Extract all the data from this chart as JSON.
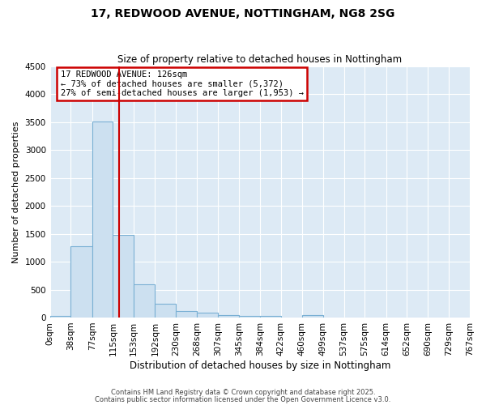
{
  "title1": "17, REDWOOD AVENUE, NOTTINGHAM, NG8 2SG",
  "title2": "Size of property relative to detached houses in Nottingham",
  "xlabel": "Distribution of detached houses by size in Nottingham",
  "ylabel": "Number of detached properties",
  "bin_labels": [
    "0sqm",
    "38sqm",
    "77sqm",
    "115sqm",
    "153sqm",
    "192sqm",
    "230sqm",
    "268sqm",
    "307sqm",
    "345sqm",
    "384sqm",
    "422sqm",
    "460sqm",
    "499sqm",
    "537sqm",
    "575sqm",
    "614sqm",
    "652sqm",
    "690sqm",
    "729sqm",
    "767sqm"
  ],
  "bar_heights": [
    30,
    1280,
    3520,
    1480,
    600,
    250,
    120,
    80,
    40,
    30,
    30,
    0,
    40,
    0,
    0,
    0,
    0,
    0,
    0,
    0
  ],
  "bar_color": "#cce0f0",
  "bar_edge_color": "#7ab0d4",
  "ylim": [
    0,
    4500
  ],
  "yticks": [
    0,
    500,
    1000,
    1500,
    2000,
    2500,
    3000,
    3500,
    4000,
    4500
  ],
  "bin_starts": [
    0,
    38,
    77,
    115,
    153,
    192,
    230,
    268,
    307,
    345,
    384,
    422,
    460,
    499,
    537,
    575,
    614,
    652,
    690,
    729
  ],
  "xlim_max": 767,
  "vline_x": 126,
  "vline_color": "#cc0000",
  "annotation_title": "17 REDWOOD AVENUE: 126sqm",
  "annotation_line2": "← 73% of detached houses are smaller (5,372)",
  "annotation_line3": "27% of semi-detached houses are larger (1,953) →",
  "annotation_box_color": "#cc0000",
  "annotation_bg": "#ffffff",
  "fig_bg_color": "#ffffff",
  "plot_bg_color": "#ddeaf5",
  "grid_color": "#ffffff",
  "footer1": "Contains HM Land Registry data © Crown copyright and database right 2025.",
  "footer2": "Contains public sector information licensed under the Open Government Licence v3.0."
}
